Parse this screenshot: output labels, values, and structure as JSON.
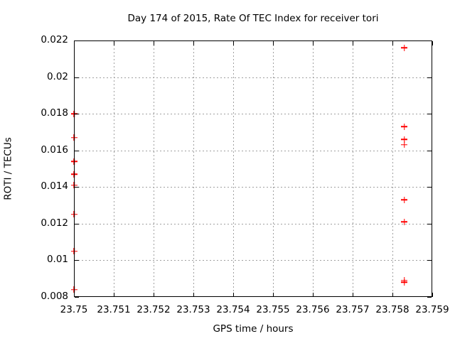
{
  "chart_data": {
    "type": "scatter",
    "title": "Day 174 of 2015, Rate Of TEC Index for receiver tori",
    "xlabel": "GPS time / hours",
    "ylabel": "ROTI / TECUs",
    "xlim": [
      23.75,
      23.759
    ],
    "ylim": [
      0.008,
      0.022
    ],
    "x_ticks": [
      23.75,
      23.751,
      23.752,
      23.753,
      23.754,
      23.755,
      23.756,
      23.757,
      23.758,
      23.759
    ],
    "x_tick_labels": [
      "23.75",
      "23.751",
      "23.752",
      "23.753",
      "23.754",
      "23.755",
      "23.756",
      "23.757",
      "23.758",
      "23.759"
    ],
    "y_ticks": [
      0.008,
      0.01,
      0.012,
      0.014,
      0.016,
      0.018,
      0.02,
      0.022
    ],
    "y_tick_labels": [
      "0.008",
      "0.01",
      "0.012",
      "0.014",
      "0.016",
      "0.018",
      "0.02",
      "0.022"
    ],
    "grid": true,
    "legend": "none",
    "marker_style": "plus",
    "series": [
      {
        "name": "ROTI",
        "color": "#ff0000",
        "points": [
          [
            23.75,
            0.018
          ],
          [
            23.75,
            0.0167
          ],
          [
            23.75,
            0.0154
          ],
          [
            23.75,
            0.0147
          ],
          [
            23.75,
            0.0141
          ],
          [
            23.75,
            0.0125
          ],
          [
            23.75,
            0.0105
          ],
          [
            23.75,
            0.0084
          ],
          [
            23.7583,
            0.0216
          ],
          [
            23.7583,
            0.0173
          ],
          [
            23.7583,
            0.0166
          ],
          [
            23.7583,
            0.0163
          ],
          [
            23.7583,
            0.0133
          ],
          [
            23.7583,
            0.0121
          ],
          [
            23.7583,
            0.0089
          ],
          [
            23.7583,
            0.0088
          ]
        ]
      }
    ]
  },
  "colors": {
    "marker": "#ff0000",
    "grid": "#a0a0a0",
    "axis": "#000000",
    "background": "#ffffff",
    "text": "#000000"
  }
}
